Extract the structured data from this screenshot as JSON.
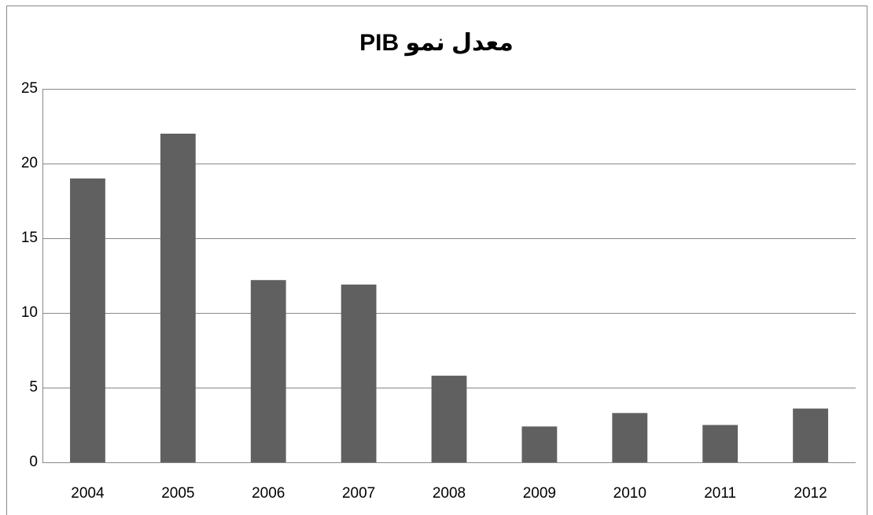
{
  "chart_data": {
    "type": "bar",
    "title": "معدل نمو PIB",
    "categories": [
      "2004",
      "2005",
      "2006",
      "2007",
      "2008",
      "2009",
      "2010",
      "2011",
      "2012"
    ],
    "values": [
      19,
      22,
      12.2,
      11.9,
      5.8,
      2.4,
      3.3,
      2.5,
      3.6
    ],
    "color": "#606060",
    "ylim": [
      0,
      25
    ],
    "yticks": [
      0,
      5,
      10,
      15,
      20,
      25
    ],
    "grid": true
  }
}
